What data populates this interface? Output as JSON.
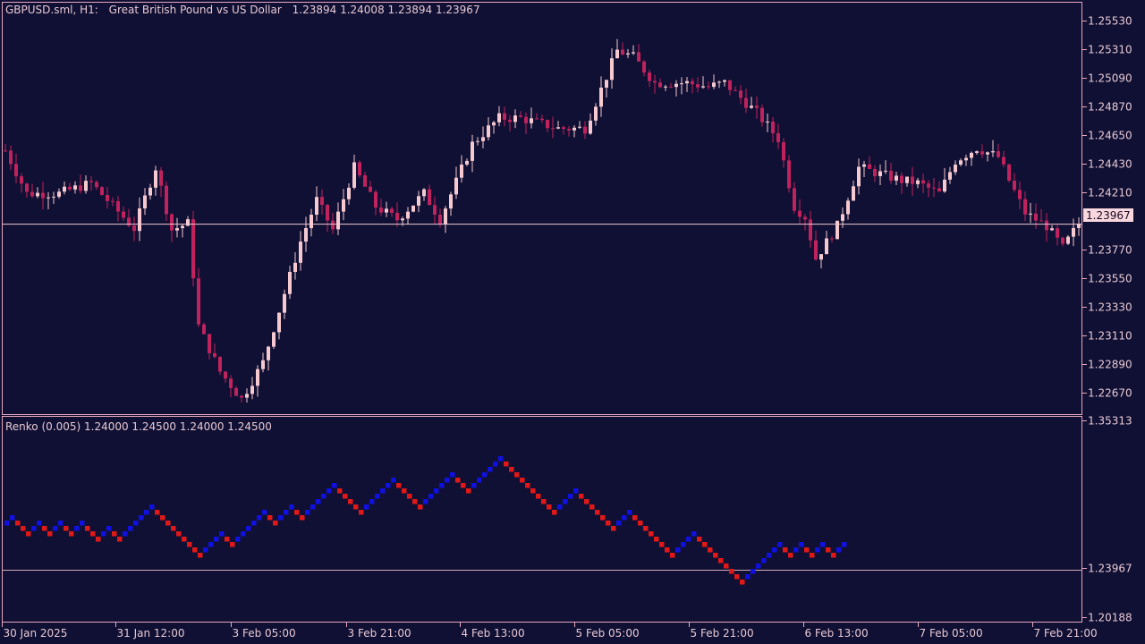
{
  "theme": {
    "background": "#0f1033",
    "frame": "#e8a7be",
    "text": "#e8c8d4",
    "bull": "#f5c9cf",
    "bear": "#c0225d",
    "renko_up": "#1010e0",
    "renko_down": "#e01818",
    "price_line": "#f2c8d2",
    "price_tag_bg": "#f8d8de"
  },
  "main_header": {
    "symbol": "GBPUSD.sml, H1:",
    "description": "Great British Pound vs US Dollar",
    "ohlc": "1.23894 1.24008 1.23894 1.23967"
  },
  "renko_header": {
    "label": "Renko (0.005) 1.24000 1.24500 1.24000 1.24500"
  },
  "chart_data": [
    {
      "type": "candlestick",
      "title": "GBPUSD.sml, H1: Great British Pound vs US Dollar",
      "y_ticks": [
        "1.25530",
        "1.25310",
        "1.25090",
        "1.24870",
        "1.24650",
        "1.24430",
        "1.24210",
        "1.23770",
        "1.23550",
        "1.23330",
        "1.23110",
        "1.22890",
        "1.22670"
      ],
      "current_price": "1.23967",
      "ylim": [
        1.2251,
        1.2566
      ],
      "x_ticks": [
        "30 Jan 2025",
        "31 Jan 12:00",
        "3 Feb 05:00",
        "3 Feb 21:00",
        "4 Feb 13:00",
        "5 Feb 05:00",
        "5 Feb 21:00",
        "6 Feb 13:00",
        "7 Feb 05:00",
        "7 Feb 21:00"
      ],
      "waypoints": [
        {
          "t": 0,
          "p": 1.2453
        },
        {
          "t": 4,
          "p": 1.242
        },
        {
          "t": 10,
          "p": 1.242
        },
        {
          "t": 16,
          "p": 1.2428
        },
        {
          "t": 24,
          "p": 1.2393
        },
        {
          "t": 28,
          "p": 1.244
        },
        {
          "t": 31,
          "p": 1.2392
        },
        {
          "t": 34,
          "p": 1.2397
        },
        {
          "t": 36,
          "p": 1.2318
        },
        {
          "t": 40,
          "p": 1.2283
        },
        {
          "t": 44,
          "p": 1.2262
        },
        {
          "t": 48,
          "p": 1.229
        },
        {
          "t": 55,
          "p": 1.2383
        },
        {
          "t": 58,
          "p": 1.2415
        },
        {
          "t": 61,
          "p": 1.2392
        },
        {
          "t": 65,
          "p": 1.244
        },
        {
          "t": 69,
          "p": 1.241
        },
        {
          "t": 73,
          "p": 1.24
        },
        {
          "t": 78,
          "p": 1.242
        },
        {
          "t": 81,
          "p": 1.24
        },
        {
          "t": 87,
          "p": 1.2458
        },
        {
          "t": 92,
          "p": 1.2478
        },
        {
          "t": 96,
          "p": 1.2478
        },
        {
          "t": 103,
          "p": 1.247
        },
        {
          "t": 108,
          "p": 1.247
        },
        {
          "t": 114,
          "p": 1.253
        },
        {
          "t": 117,
          "p": 1.2525
        },
        {
          "t": 121,
          "p": 1.2505
        },
        {
          "t": 127,
          "p": 1.2505
        },
        {
          "t": 131,
          "p": 1.2502
        },
        {
          "t": 134,
          "p": 1.2505
        },
        {
          "t": 140,
          "p": 1.2482
        },
        {
          "t": 144,
          "p": 1.2462
        },
        {
          "t": 147,
          "p": 1.241
        },
        {
          "t": 149,
          "p": 1.2402
        },
        {
          "t": 151,
          "p": 1.237
        },
        {
          "t": 155,
          "p": 1.2395
        },
        {
          "t": 159,
          "p": 1.244
        },
        {
          "t": 163,
          "p": 1.2435
        },
        {
          "t": 167,
          "p": 1.243
        },
        {
          "t": 170,
          "p": 1.2428
        },
        {
          "t": 174,
          "p": 1.242
        },
        {
          "t": 177,
          "p": 1.2445
        },
        {
          "t": 181,
          "p": 1.2455
        },
        {
          "t": 185,
          "p": 1.2448
        },
        {
          "t": 187,
          "p": 1.243
        },
        {
          "t": 190,
          "p": 1.2405
        },
        {
          "t": 194,
          "p": 1.2395
        },
        {
          "t": 197,
          "p": 1.2378
        },
        {
          "t": 200,
          "p": 1.2397
        }
      ]
    },
    {
      "type": "renko",
      "title": "Renko (0.005)",
      "values_text": "1.24000 1.24500 1.24000 1.24500",
      "y_ticks": [
        "1.35313",
        "1.23967",
        "1.20188"
      ],
      "current_price": "1.23967",
      "ylim": [
        1.1988,
        1.3555
      ],
      "legs": [
        {
          "dir": "up",
          "n": 2
        },
        {
          "dir": "down",
          "n": 3
        },
        {
          "dir": "up",
          "n": 2
        },
        {
          "dir": "down",
          "n": 2
        },
        {
          "dir": "up",
          "n": 2
        },
        {
          "dir": "down",
          "n": 2
        },
        {
          "dir": "up",
          "n": 2
        },
        {
          "dir": "down",
          "n": 3
        },
        {
          "dir": "up",
          "n": 2
        },
        {
          "dir": "down",
          "n": 2
        },
        {
          "dir": "up",
          "n": 6
        },
        {
          "dir": "down",
          "n": 9
        },
        {
          "dir": "up",
          "n": 4
        },
        {
          "dir": "down",
          "n": 2
        },
        {
          "dir": "up",
          "n": 6
        },
        {
          "dir": "down",
          "n": 2
        },
        {
          "dir": "up",
          "n": 3
        },
        {
          "dir": "down",
          "n": 2
        },
        {
          "dir": "up",
          "n": 6
        },
        {
          "dir": "down",
          "n": 5
        },
        {
          "dir": "up",
          "n": 6
        },
        {
          "dir": "down",
          "n": 5
        },
        {
          "dir": "up",
          "n": 6
        },
        {
          "dir": "down",
          "n": 3
        },
        {
          "dir": "up",
          "n": 6
        },
        {
          "dir": "down",
          "n": 10
        },
        {
          "dir": "up",
          "n": 4
        },
        {
          "dir": "down",
          "n": 7
        },
        {
          "dir": "up",
          "n": 3
        },
        {
          "dir": "down",
          "n": 8
        },
        {
          "dir": "up",
          "n": 4
        },
        {
          "dir": "down",
          "n": 9
        },
        {
          "dir": "up",
          "n": 7
        },
        {
          "dir": "down",
          "n": 2
        },
        {
          "dir": "up",
          "n": 2
        },
        {
          "dir": "down",
          "n": 2
        },
        {
          "dir": "up",
          "n": 2
        },
        {
          "dir": "down",
          "n": 2
        },
        {
          "dir": "up",
          "n": 2
        }
      ]
    }
  ]
}
